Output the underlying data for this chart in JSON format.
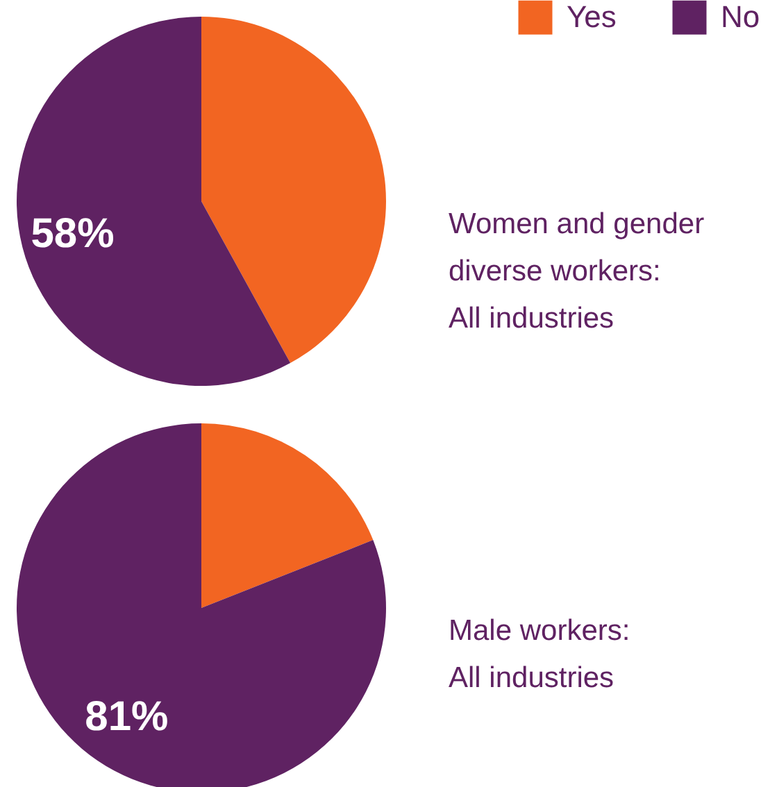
{
  "chart_data": [
    {
      "type": "pie",
      "categories": [
        "Yes",
        "No"
      ],
      "values": [
        42,
        58
      ],
      "colors": [
        "#f26522",
        "#5f2262"
      ],
      "value_labels": [
        null,
        "58%"
      ],
      "legend": "top right",
      "annotations": [
        "Women and gender diverse workers: All industries"
      ]
    },
    {
      "type": "pie",
      "categories": [
        null,
        null
      ],
      "values": [
        19,
        81
      ],
      "colors": [
        "#f26522",
        "#5f2262"
      ],
      "value_labels": [
        null,
        "81%"
      ],
      "annotations": [
        "Male workers: All industries"
      ]
    }
  ]
}
